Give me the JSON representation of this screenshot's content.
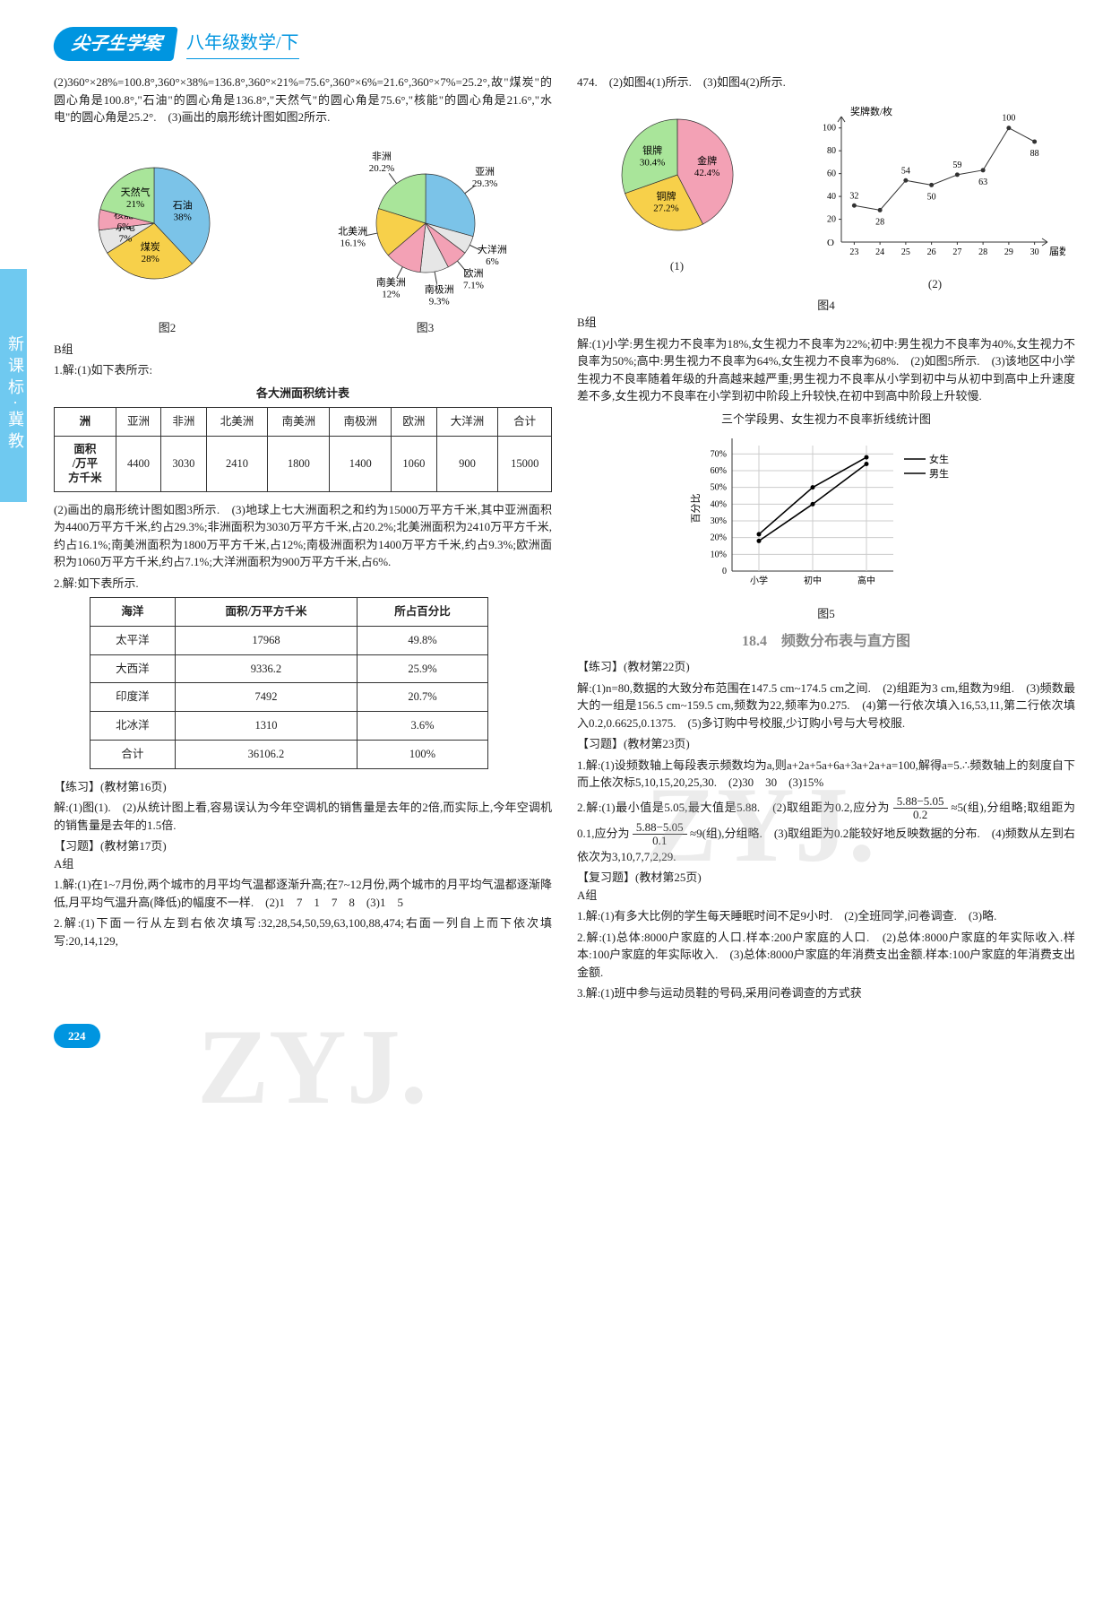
{
  "sidebar_text": "新课标·冀教",
  "header": {
    "badge": "尖子生学案",
    "subtitle": "八年级数学/下"
  },
  "left": {
    "p1": "(2)360°×28%=100.8°,360°×38%=136.8°,360°×21%=75.6°,360°×6%=21.6°,360°×7%=25.2°,故\"煤炭\"的圆心角是100.8°,\"石油\"的圆心角是136.8°,\"天然气\"的圆心角是75.6°,\"核能\"的圆心角是21.6°,\"水电\"的圆心角是25.2°.　(3)画出的扇形统计图如图2所示.",
    "fig2_cap": "图2",
    "fig3_cap": "图3",
    "pieA": {
      "slices": [
        {
          "label": "石油",
          "pct": "38%",
          "color": "#7bc3e8",
          "angle": 136.8
        },
        {
          "label": "煤炭",
          "pct": "28%",
          "color": "#f7d04a",
          "angle": 100.8
        },
        {
          "label": "水电",
          "pct": "7%",
          "color": "#e6e6e6",
          "angle": 25.2
        },
        {
          "label": "核能",
          "pct": "6%",
          "color": "#f3a1b5",
          "angle": 21.6
        },
        {
          "label": "天然气",
          "pct": "21%",
          "color": "#a9e59a",
          "angle": 75.6
        }
      ]
    },
    "pieB": {
      "slices": [
        {
          "label": "亚洲",
          "pct": "29.3%",
          "color": "#7bc3e8",
          "angle": 105.5
        },
        {
          "label": "大洋洲",
          "pct": "6%",
          "color": "#e6e6e6",
          "angle": 21.6
        },
        {
          "label": "欧洲",
          "pct": "7.1%",
          "color": "#f3a1b5",
          "angle": 25.6
        },
        {
          "label": "南极洲",
          "pct": "9.3%",
          "color": "#e6e6e6",
          "angle": 33.5
        },
        {
          "label": "南美洲",
          "pct": "12%",
          "color": "#f3a1b5",
          "angle": 43.2
        },
        {
          "label": "北美洲",
          "pct": "16.1%",
          "color": "#f7d04a",
          "angle": 58.0
        },
        {
          "label": "非洲",
          "pct": "20.2%",
          "color": "#a9e59a",
          "angle": 72.7
        }
      ]
    },
    "bgroup": "B组",
    "q1_intro": "1.解:(1)如下表所示:",
    "table1_title": "各大洲面积统计表",
    "t1_rowhdr1": "洲",
    "t1_cols": [
      "亚洲",
      "非洲",
      "北美洲",
      "南美洲",
      "南极洲",
      "欧洲",
      "大洋洲",
      "合计"
    ],
    "t1_rowhdr2": "面积/万平方千米",
    "t1_vals": [
      "4400",
      "3030",
      "2410",
      "1800",
      "1400",
      "1060",
      "900",
      "15000"
    ],
    "p2": "(2)画出的扇形统计图如图3所示.　(3)地球上七大洲面积之和约为15000万平方千米,其中亚洲面积为4400万平方千米,约占29.3%;非洲面积为3030万平方千米,占20.2%;北美洲面积为2410万平方千米,约占16.1%;南美洲面积为1800万平方千米,占12%;南极洲面积为1400万平方千米,约占9.3%;欧洲面积为1060万平方千米,约占7.1%;大洋洲面积为900万平方千米,占6%.",
    "q2_intro": "2.解:如下表所示.",
    "t2_hdr": [
      "海洋",
      "面积/万平方千米",
      "所占百分比"
    ],
    "t2_rows": [
      [
        "太平洋",
        "17968",
        "49.8%"
      ],
      [
        "大西洋",
        "9336.2",
        "25.9%"
      ],
      [
        "印度洋",
        "7492",
        "20.7%"
      ],
      [
        "北冰洋",
        "1310",
        "3.6%"
      ],
      [
        "合计",
        "36106.2",
        "100%"
      ]
    ],
    "lx_head": "【练习】(教材第16页)",
    "lx_body": "解:(1)图(1).　(2)从统计图上看,容易误认为今年空调机的销售量是去年的2倍,而实际上,今年空调机的销售量是去年的1.5倍.",
    "xt_head": "【习题】(教材第17页)",
    "a_label": "A组",
    "a1": "1.解:(1)在1~7月份,两个城市的月平均气温都逐渐升高;在7~12月份,两个城市的月平均气温都逐渐降低,月平均气温升高(降低)的幅度不一样.　(2)1　7　1　7　8　(3)1　5",
    "a2": "2.解:(1)下面一行从左到右依次填写:32,28,54,50,59,63,100,88,474;右面一列自上而下依次填写:20,14,129,"
  },
  "right": {
    "p0": "474.　(2)如图4(1)所示.　(3)如图4(2)所示.",
    "pieC": {
      "slices": [
        {
          "label": "金牌",
          "pct": "42.4%",
          "color": "#f3a1b5",
          "angle": 152.6
        },
        {
          "label": "铜牌",
          "pct": "27.2%",
          "color": "#f7d04a",
          "angle": 97.9
        },
        {
          "label": "银牌",
          "pct": "30.4%",
          "color": "#a9e59a",
          "angle": 109.4
        }
      ]
    },
    "fig4_sub1": "(1)",
    "fig4_sub2": "(2)",
    "fig4_cap": "图4",
    "line4": {
      "y_label": "奖牌数/枚",
      "x_label": "届数",
      "x_ticks": [
        "23",
        "24",
        "25",
        "26",
        "27",
        "28",
        "29",
        "30"
      ],
      "y_ticks": [
        "20",
        "40",
        "60",
        "80",
        "100"
      ],
      "values": [
        32,
        28,
        54,
        50,
        59,
        63,
        100,
        88
      ],
      "color": "#333",
      "bg": "#ffffff",
      "grid": "#e0e0e0"
    },
    "bgroup": "B组",
    "p1": "解:(1)小学:男生视力不良率为18%,女生视力不良率为22%;初中:男生视力不良率为40%,女生视力不良率为50%;高中:男生视力不良率为64%,女生视力不良率为68%.　(2)如图5所示.　(3)该地区中小学生视力不良率随着年级的升高越来越严重;男生视力不良率从小学到初中与从初中到高中上升速度差不多,女生视力不良率在小学到初中阶段上升较快,在初中到高中阶段上升较慢.",
    "fig5_title": "三个学段男、女生视力不良率折线统计图",
    "fig5_cap": "图5",
    "line5": {
      "y_label": "百分比",
      "x_ticks": [
        "小学",
        "初中",
        "高中"
      ],
      "y_ticks": [
        "0",
        "10%",
        "20%",
        "30%",
        "40%",
        "50%",
        "60%",
        "70%"
      ],
      "series": [
        {
          "name": "女生",
          "values": [
            22,
            50,
            68
          ],
          "color": "#000"
        },
        {
          "name": "男生",
          "values": [
            18,
            40,
            64
          ],
          "color": "#000"
        }
      ],
      "grid": "#e0e0e0"
    },
    "sec_head": "18.4　频数分布表与直方图",
    "lx_head": "【练习】(教材第22页)",
    "lx_body": "解:(1)n=80,数据的大致分布范围在147.5 cm~174.5 cm之间.　(2)组距为3 cm,组数为9组.　(3)频数最大的一组是156.5 cm~159.5 cm,频数为22,频率为0.275.　(4)第一行依次填入16,53,11,第二行依次填入0.2,0.6625,0.1375.　(5)多订购中号校服,少订购小号与大号校服.",
    "xt_head": "【习题】(教材第23页)",
    "xt1": "1.解:(1)设频数轴上每段表示频数均为a,则a+2a+5a+6a+3a+2a+a=100,解得a=5.∴频数轴上的刻度自下而上依次标5,10,15,20,25,30.　(2)30　30　(3)15%",
    "xt2_a": "2.解:(1)最小值是5.05,最大值是5.88.　(2)取组距为0.2,应分为",
    "frac1_num": "5.88−5.05",
    "frac1_den": "0.2",
    "xt2_b": "≈5(组),分组略;取组距为0.1,应分为",
    "frac2_num": "5.88−5.05",
    "frac2_den": "0.1",
    "xt2_c": "≈9(组),分组略.　(3)取组距为0.2能较好地反映数据的分布.　(4)频数从左到右依次为3,10,7,7,2,29.",
    "fx_head": "【复习题】(教材第25页)",
    "fx_a": "A组",
    "fx1": "1.解:(1)有多大比例的学生每天睡眠时间不足9小时.　(2)全班同学,问卷调查.　(3)略.",
    "fx2": "2.解:(1)总体:8000户家庭的人口.样本:200户家庭的人口.　(2)总体:8000户家庭的年实际收入.样本:100户家庭的年实际收入.　(3)总体:8000户家庭的年消费支出金额.样本:100户家庭的年消费支出金额.",
    "fx3": "3.解:(1)班中参与运动员鞋的号码,采用问卷调查的方式获"
  },
  "pagenum": "224"
}
